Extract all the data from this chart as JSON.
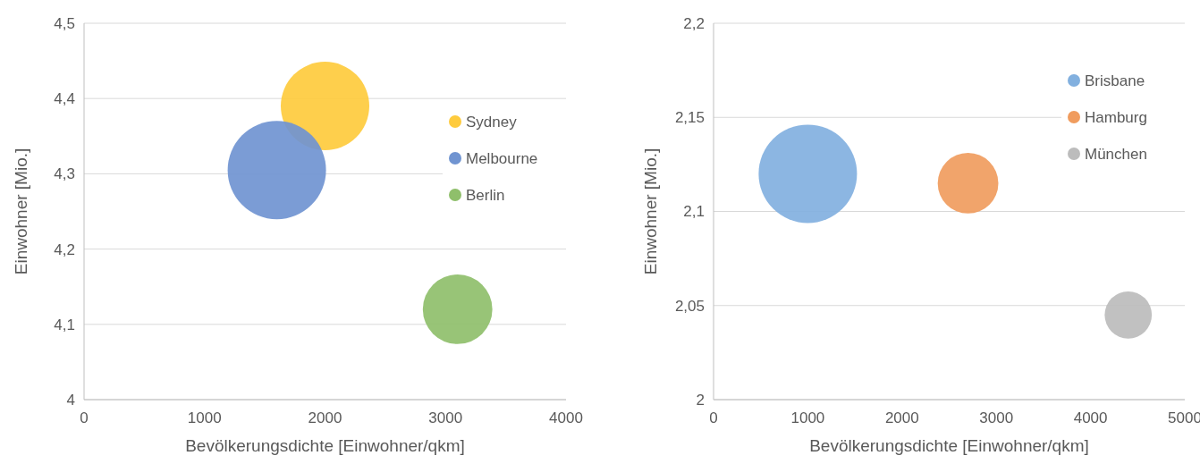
{
  "chart_data": [
    {
      "type": "bubble",
      "xlabel": "Bevölkerungsdichte [Einwohner/qkm]",
      "ylabel": "Einwohner [Mio.]",
      "xlim": [
        0,
        4000
      ],
      "xticks": [
        0,
        1000,
        2000,
        3000,
        4000
      ],
      "ylim": [
        4,
        4.5
      ],
      "yticks": [
        4,
        {
          "value": 4.1,
          "label": "4,1"
        },
        {
          "value": 4.2,
          "label": "4,2"
        },
        {
          "value": 4.3,
          "label": "4,3"
        },
        {
          "value": 4.4,
          "label": "4,4"
        },
        {
          "value": 4.5,
          "label": "4,5"
        }
      ],
      "grid": "y",
      "legend": "right",
      "series": [
        {
          "name": "Sydney",
          "color": "#fecb3d",
          "x": [
            2000
          ],
          "values": [
            4.39
          ],
          "sizes": [
            0.81
          ]
        },
        {
          "name": "Melbourne",
          "color": "#7094d1",
          "x": [
            1600
          ],
          "values": [
            4.305
          ],
          "sizes": [
            1
          ]
        },
        {
          "name": "Berlin",
          "color": "#8fbf6b",
          "x": [
            3100
          ],
          "values": [
            4.12
          ],
          "sizes": [
            0.5
          ]
        }
      ]
    },
    {
      "type": "bubble",
      "xlabel": "Bevölkerungsdichte [Einwohner/qkm]",
      "ylabel": "Einwohner [Mio.]",
      "xlim": [
        0,
        5000
      ],
      "xticks": [
        0,
        1000,
        2000,
        3000,
        4000,
        5000
      ],
      "ylim": [
        2,
        2.2
      ],
      "yticks": [
        2,
        {
          "value": 2.05,
          "label": "2,05"
        },
        {
          "value": 2.1,
          "label": "2,1"
        },
        {
          "value": 2.15,
          "label": "2,15"
        },
        {
          "value": 2.2,
          "label": "2,2"
        }
      ],
      "grid": "y",
      "legend": "right",
      "series": [
        {
          "name": "Brisbane",
          "color": "#82b0df",
          "x": [
            1000
          ],
          "values": [
            2.12
          ],
          "sizes": [
            1
          ]
        },
        {
          "name": "Hamburg",
          "color": "#f09c5e",
          "x": [
            2700
          ],
          "values": [
            2.115
          ],
          "sizes": [
            0.38
          ]
        },
        {
          "name": "München",
          "color": "#bcbcbc",
          "x": [
            4400
          ],
          "values": [
            2.045
          ],
          "sizes": [
            0.23
          ]
        }
      ]
    }
  ]
}
